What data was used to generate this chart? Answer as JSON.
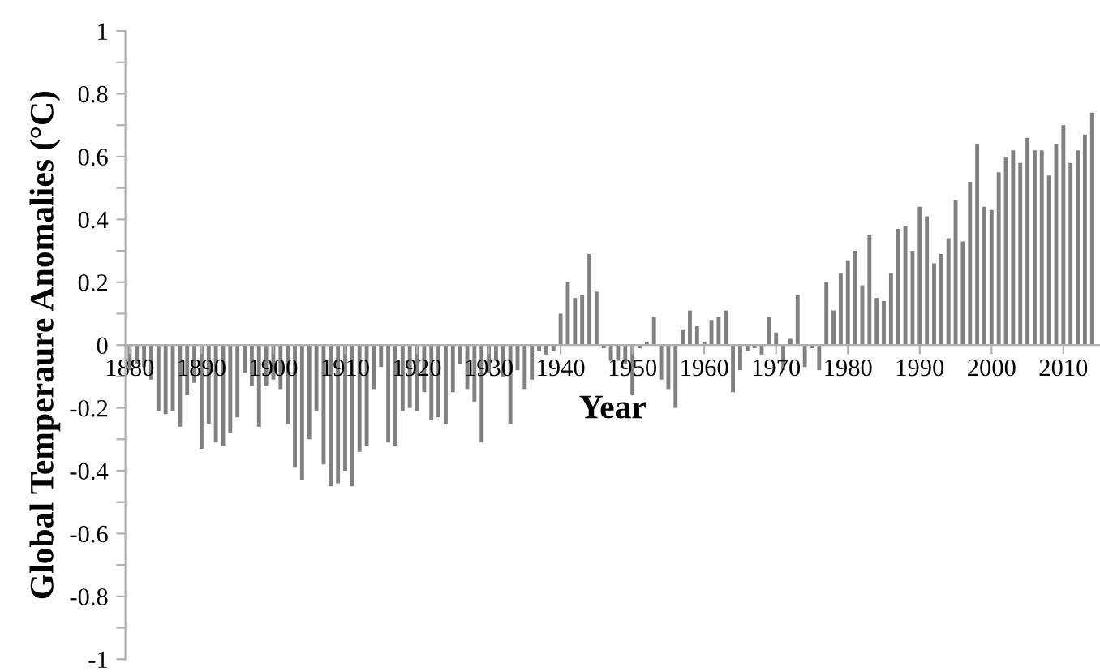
{
  "chart_data": {
    "type": "bar",
    "xlabel": "Year",
    "ylabel": "Global Temperaure Anomalies (°C)",
    "x": [
      1880,
      1881,
      1882,
      1883,
      1884,
      1885,
      1886,
      1887,
      1888,
      1889,
      1890,
      1891,
      1892,
      1893,
      1894,
      1895,
      1896,
      1897,
      1898,
      1899,
      1900,
      1901,
      1902,
      1903,
      1904,
      1905,
      1906,
      1907,
      1908,
      1909,
      1910,
      1911,
      1912,
      1913,
      1914,
      1915,
      1916,
      1917,
      1918,
      1919,
      1920,
      1921,
      1922,
      1923,
      1924,
      1925,
      1926,
      1927,
      1928,
      1929,
      1930,
      1931,
      1932,
      1933,
      1934,
      1935,
      1936,
      1937,
      1938,
      1939,
      1940,
      1941,
      1942,
      1943,
      1944,
      1945,
      1946,
      1947,
      1948,
      1949,
      1950,
      1951,
      1952,
      1953,
      1954,
      1955,
      1956,
      1957,
      1958,
      1959,
      1960,
      1961,
      1962,
      1963,
      1964,
      1965,
      1966,
      1967,
      1968,
      1969,
      1970,
      1971,
      1972,
      1973,
      1974,
      1975,
      1976,
      1977,
      1978,
      1979,
      1980,
      1981,
      1982,
      1983,
      1984,
      1985,
      1986,
      1987,
      1988,
      1989,
      1990,
      1991,
      1992,
      1993,
      1994,
      1995,
      1996,
      1997,
      1998,
      1999,
      2000,
      2001,
      2002,
      2003,
      2004,
      2005,
      2006,
      2007,
      2008,
      2009,
      2010,
      2011,
      2012,
      2013,
      2014
    ],
    "values": [
      -0.08,
      -0.06,
      -0.07,
      -0.11,
      -0.21,
      -0.22,
      -0.21,
      -0.26,
      -0.16,
      -0.12,
      -0.33,
      -0.25,
      -0.31,
      -0.32,
      -0.28,
      -0.23,
      -0.09,
      -0.13,
      -0.26,
      -0.13,
      -0.11,
      -0.14,
      -0.25,
      -0.39,
      -0.43,
      -0.3,
      -0.21,
      -0.38,
      -0.45,
      -0.44,
      -0.4,
      -0.45,
      -0.34,
      -0.32,
      -0.14,
      -0.07,
      -0.31,
      -0.32,
      -0.21,
      -0.2,
      -0.21,
      -0.15,
      -0.24,
      -0.23,
      -0.25,
      -0.15,
      -0.06,
      -0.14,
      -0.18,
      -0.31,
      -0.09,
      -0.05,
      -0.1,
      -0.25,
      -0.08,
      -0.14,
      -0.11,
      -0.02,
      -0.03,
      -0.02,
      0.1,
      0.2,
      0.15,
      0.16,
      0.29,
      0.17,
      -0.01,
      -0.05,
      -0.05,
      -0.06,
      -0.16,
      -0.01,
      0.01,
      0.09,
      -0.11,
      -0.14,
      -0.2,
      0.05,
      0.11,
      0.06,
      0.01,
      0.08,
      0.09,
      0.11,
      -0.15,
      -0.08,
      -0.02,
      -0.01,
      -0.03,
      0.09,
      0.04,
      -0.08,
      0.02,
      0.16,
      -0.07,
      -0.01,
      -0.08,
      0.2,
      0.11,
      0.23,
      0.27,
      0.3,
      0.19,
      0.35,
      0.15,
      0.14,
      0.23,
      0.37,
      0.38,
      0.3,
      0.44,
      0.41,
      0.26,
      0.29,
      0.34,
      0.46,
      0.33,
      0.52,
      0.64,
      0.44,
      0.43,
      0.55,
      0.6,
      0.62,
      0.58,
      0.66,
      0.62,
      0.62,
      0.54,
      0.64,
      0.7,
      0.58,
      0.62,
      0.67,
      0.74
    ],
    "color": "#808080",
    "xlim": [
      1879.4,
      2015.1
    ],
    "xticks": [
      1880,
      1890,
      1900,
      1910,
      1920,
      1930,
      1940,
      1950,
      1960,
      1970,
      1980,
      1990,
      2000,
      2010
    ],
    "ylim": [
      -1,
      1
    ],
    "yticks": [
      -1,
      {
        "value": -0.9,
        "label": null
      },
      -0.8,
      {
        "value": -0.7,
        "label": null
      },
      -0.6,
      {
        "value": -0.5,
        "label": null
      },
      -0.4,
      {
        "value": -0.3,
        "label": null
      },
      -0.2,
      {
        "value": -0.1,
        "label": null
      },
      0,
      {
        "value": 0.1,
        "label": null
      },
      0.2,
      {
        "value": 0.3,
        "label": null
      },
      0.4,
      {
        "value": 0.5,
        "label": null
      },
      0.6,
      {
        "value": 0.7,
        "label": null
      },
      0.8,
      {
        "value": 0.9,
        "label": null
      },
      1
    ]
  }
}
